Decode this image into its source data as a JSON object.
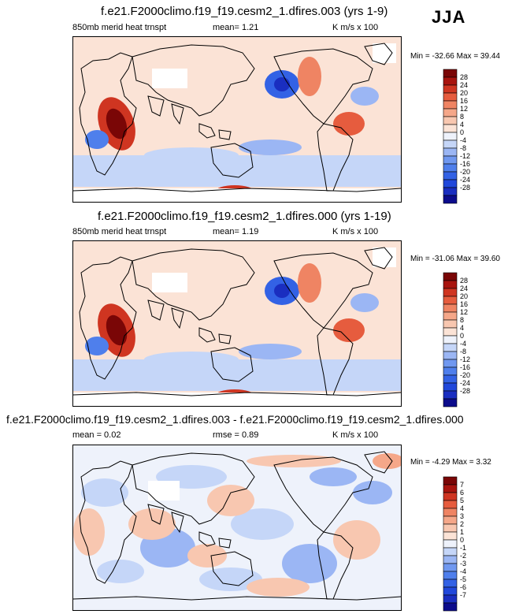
{
  "season": "JJA",
  "panels": [
    {
      "title": "f.e21.F2000climo.f19_f19.cesm2_1.dfires.003 (yrs 1-9)",
      "left_label": "850mb merid heat trnspt",
      "mean_text": "mean=   1.21",
      "units": "K m/s x 100",
      "minmax": "Min = -32.66 Max =  39.44",
      "colorbar_levels": [
        "28",
        "24",
        "20",
        "16",
        "12",
        "8",
        "4",
        "0",
        "-4",
        "-8",
        "-12",
        "-16",
        "-20",
        "-24",
        "-28"
      ]
    },
    {
      "title": "f.e21.F2000climo.f19_f19.cesm2_1.dfires.000 (yrs 1-19)",
      "left_label": "850mb merid heat trnspt",
      "mean_text": "mean=   1.19",
      "units": "K m/s x 100",
      "minmax": "Min = -31.06 Max =  39.60",
      "colorbar_levels": [
        "28",
        "24",
        "20",
        "16",
        "12",
        "8",
        "4",
        "0",
        "-4",
        "-8",
        "-12",
        "-16",
        "-20",
        "-24",
        "-28"
      ]
    },
    {
      "title": "f.e21.F2000climo.f19_f19.cesm2_1.dfires.003 - f.e21.F2000climo.f19_f19.cesm2_1.dfires.000",
      "left_label": "mean =   0.02",
      "mean_text": "rmse =   0.89",
      "units": "K m/s x 100",
      "minmax": "Min = -4.29 Max =  3.32",
      "colorbar_levels": [
        "7",
        "6",
        "5",
        "4",
        "3",
        "2",
        "1",
        "0",
        "-1",
        "-2",
        "-3",
        "-4",
        "-5",
        "-6",
        "-7"
      ]
    }
  ],
  "chart_data": [
    {
      "type": "heatmap",
      "title": "f.e21.F2000climo.f19_f19.cesm2_1.dfires.003 (yrs 1-9)",
      "variable": "850mb merid heat trnspt",
      "units": "K m/s x 100",
      "mean": 1.21,
      "min": -32.66,
      "max": 39.44,
      "levels": [
        -28,
        -24,
        -20,
        -16,
        -12,
        -8,
        -4,
        0,
        4,
        8,
        12,
        16,
        20,
        24,
        28
      ]
    },
    {
      "type": "heatmap",
      "title": "f.e21.F2000climo.f19_f19.cesm2_1.dfires.000 (yrs 1-19)",
      "variable": "850mb merid heat trnspt",
      "units": "K m/s x 100",
      "mean": 1.19,
      "min": -31.06,
      "max": 39.6,
      "levels": [
        -28,
        -24,
        -20,
        -16,
        -12,
        -8,
        -4,
        0,
        4,
        8,
        12,
        16,
        20,
        24,
        28
      ]
    },
    {
      "type": "heatmap",
      "title": "f.e21.F2000climo.f19_f19.cesm2_1.dfires.003 - f.e21.F2000climo.f19_f19.cesm2_1.dfires.000",
      "units": "K m/s x 100",
      "mean": 0.02,
      "rmse": 0.89,
      "min": -4.29,
      "max": 3.32,
      "levels": [
        -7,
        -6,
        -5,
        -4,
        -3,
        -2,
        -1,
        0,
        1,
        2,
        3,
        4,
        5,
        6,
        7
      ]
    }
  ],
  "colors": {
    "levels": [
      "#0c0c8c",
      "#1a2ec0",
      "#2148db",
      "#3362e5",
      "#4f7fec",
      "#7098f0",
      "#9bb6f4",
      "#c5d6f8",
      "#eef2fb",
      "#fbe3d6",
      "#f8c7b0",
      "#f5a789",
      "#ef8463",
      "#e65c3e",
      "#cf3521",
      "#a8140e",
      "#7a0606"
    ]
  }
}
